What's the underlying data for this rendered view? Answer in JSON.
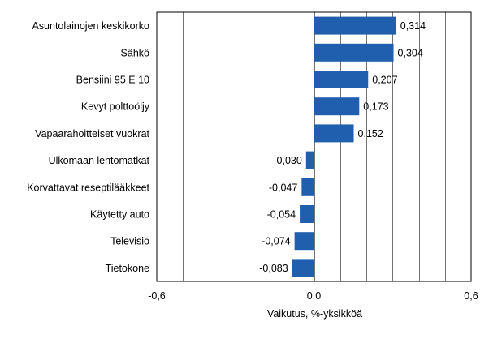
{
  "chart_data": {
    "type": "bar",
    "orientation": "horizontal",
    "categories": [
      "Asuntolainojen keskikorko",
      "Sähkö",
      "Bensiini 95 E 10",
      "Kevyt polttoöljy",
      "Vapaarahoitteiset vuokrat",
      "Ulkomaan lentomatkat",
      "Korvattavat reseptilääkkeet",
      "Käytetty auto",
      "Televisio",
      "Tietokone"
    ],
    "values": [
      0.314,
      0.304,
      0.207,
      0.173,
      0.152,
      -0.03,
      -0.047,
      -0.054,
      -0.074,
      -0.083
    ],
    "value_labels": [
      "0,314",
      "0,304",
      "0,207",
      "0,173",
      "0,152",
      "-0,030",
      "-0,047",
      "-0,054",
      "-0,074",
      "-0,083"
    ],
    "xlim": [
      -0.6,
      0.6
    ],
    "xticks": [
      -0.6,
      0.0,
      0.6
    ],
    "xtick_labels": [
      "-0,6",
      "0,0",
      "0,6"
    ],
    "grid_step": 0.1,
    "xlabel": "Vaikutus, %-yksikköä",
    "ylabel": "",
    "title": "",
    "grid": true,
    "legend": "none",
    "bar_color": "#1f5fae",
    "grid_color": "#000000"
  }
}
